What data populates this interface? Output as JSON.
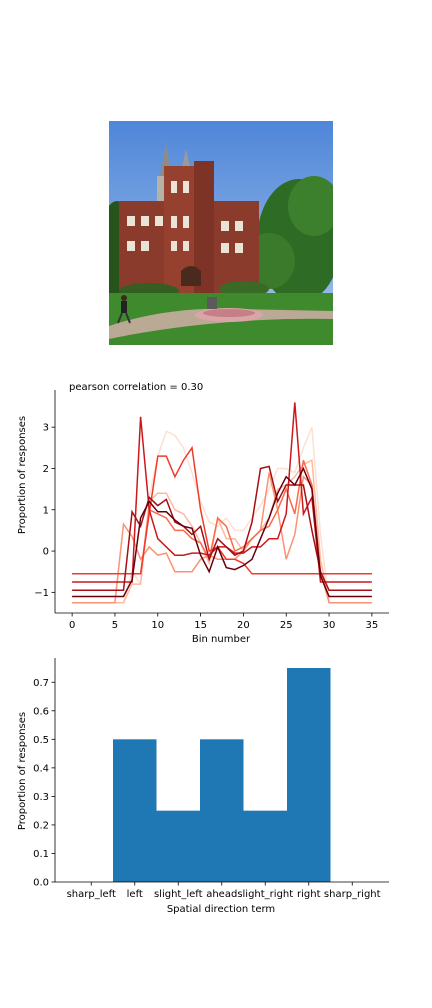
{
  "photo": {
    "alt": "campus-building-photo"
  },
  "colors": {
    "bar": "#1f77b4",
    "line_palette": [
      "#fee0d2",
      "#fcbba1",
      "#fc9272",
      "#fb6a4a",
      "#ef3b2c",
      "#cb181d",
      "#a50f15",
      "#67000d"
    ]
  },
  "chart_data": [
    {
      "type": "line",
      "title": "pearson correlation = 0.30",
      "xlabel": "Bin number",
      "ylabel": "Proportion of responses",
      "xlim": [
        -2,
        37
      ],
      "ylim": [
        -1.5,
        3.9
      ],
      "xticks": [
        0,
        5,
        10,
        15,
        20,
        25,
        30,
        35
      ],
      "yticks": [
        -1,
        0,
        1,
        2,
        3
      ],
      "grid": false,
      "legend": "none",
      "x": [
        0,
        1,
        2,
        3,
        4,
        5,
        6,
        7,
        8,
        9,
        10,
        11,
        12,
        13,
        14,
        15,
        16,
        17,
        18,
        19,
        20,
        21,
        22,
        23,
        24,
        25,
        26,
        27,
        28,
        29,
        30,
        31,
        32,
        33,
        34,
        35
      ],
      "series": [
        {
          "color": "#fee0d2",
          "values": [
            -1.25,
            -1.25,
            -1.25,
            -1.25,
            -1.25,
            -1.25,
            -1.25,
            -0.5,
            -0.8,
            1.3,
            2.3,
            2.9,
            2.8,
            2.5,
            1.9,
            1.2,
            0.7,
            0.6,
            0.8,
            0.5,
            0.5,
            0.8,
            1.1,
            1.5,
            2.0,
            2.0,
            1.9,
            2.5,
            3.0,
            0.4,
            -1.25,
            -1.25,
            -1.25,
            -1.25,
            -1.25,
            -1.25
          ]
        },
        {
          "color": "#fcbba1",
          "values": [
            -1.25,
            -1.25,
            -1.25,
            -1.25,
            -1.25,
            -1.25,
            -1.25,
            -0.8,
            -0.8,
            1.2,
            1.4,
            1.4,
            1.0,
            0.9,
            0.6,
            0.2,
            -0.3,
            0.8,
            0.3,
            0.3,
            0.0,
            0.3,
            0.5,
            0.8,
            1.5,
            1.6,
            1.8,
            2.1,
            2.2,
            -0.2,
            -1.25,
            -1.25,
            -1.25,
            -1.25,
            -1.25,
            -1.25
          ]
        },
        {
          "color": "#fc9272",
          "values": [
            -1.25,
            -1.25,
            -1.25,
            -1.25,
            -1.25,
            -1.25,
            0.65,
            0.35,
            -0.2,
            0.1,
            -0.1,
            -0.05,
            -0.5,
            -0.5,
            -0.5,
            -0.2,
            -0.1,
            -0.2,
            -0.2,
            -0.2,
            0.0,
            0.3,
            0.5,
            1.9,
            1.0,
            -0.2,
            0.4,
            1.8,
            1.6,
            -0.5,
            -1.25,
            -1.25,
            -1.25,
            -1.25,
            -1.25,
            -1.25
          ]
        },
        {
          "color": "#fb6a4a",
          "values": [
            -0.55,
            -0.55,
            -0.55,
            -0.55,
            -0.55,
            -0.55,
            -0.55,
            -0.55,
            -0.55,
            1.0,
            0.9,
            0.8,
            0.5,
            0.5,
            0.3,
            0.2,
            -0.2,
            0.8,
            0.6,
            0.0,
            0.1,
            0.3,
            0.5,
            0.6,
            1.0,
            1.5,
            0.9,
            2.2,
            1.6,
            -0.55,
            -0.55,
            -0.55,
            -0.55,
            -0.55,
            -0.55,
            -0.55
          ]
        },
        {
          "color": "#ef3b2c",
          "values": [
            -0.55,
            -0.55,
            -0.55,
            -0.55,
            -0.55,
            -0.55,
            -0.55,
            -0.55,
            -0.55,
            0.9,
            2.3,
            2.3,
            1.8,
            2.2,
            2.5,
            1.0,
            0.0,
            0.1,
            -0.2,
            -0.2,
            -0.3,
            -0.55,
            -0.55,
            -0.55,
            -0.55,
            -0.55,
            -0.55,
            -0.55,
            -0.55,
            -0.55,
            -0.55,
            -0.55,
            -0.55,
            -0.55,
            -0.55,
            -0.55
          ]
        },
        {
          "color": "#cb181d",
          "values": [
            -0.75,
            -0.75,
            -0.75,
            -0.75,
            -0.75,
            -0.75,
            -0.75,
            -0.75,
            3.25,
            1.0,
            0.3,
            0.1,
            -0.1,
            -0.1,
            -0.05,
            -0.05,
            -0.1,
            0.1,
            0.1,
            -0.05,
            -0.05,
            0.1,
            0.1,
            0.3,
            0.3,
            0.9,
            3.6,
            0.9,
            1.3,
            -0.75,
            -0.75,
            -0.75,
            -0.75,
            -0.75,
            -0.75,
            -0.75
          ]
        },
        {
          "color": "#a50f15",
          "values": [
            -0.95,
            -0.95,
            -0.95,
            -0.95,
            -0.95,
            -0.95,
            -0.95,
            0.95,
            0.6,
            1.3,
            1.1,
            1.25,
            0.7,
            0.6,
            0.4,
            0.6,
            -0.2,
            0.3,
            0.1,
            -0.1,
            0.0,
            0.7,
            2.0,
            2.05,
            1.2,
            1.6,
            1.6,
            1.6,
            0.5,
            -0.5,
            -0.95,
            -0.95,
            -0.95,
            -0.95,
            -0.95,
            -0.95
          ]
        },
        {
          "color": "#67000d",
          "values": [
            -1.1,
            -1.1,
            -1.1,
            -1.1,
            -1.1,
            -1.1,
            -1.1,
            -0.7,
            0.8,
            1.2,
            0.95,
            0.95,
            0.75,
            0.6,
            0.55,
            -0.1,
            -0.5,
            0.1,
            -0.4,
            -0.45,
            -0.35,
            -0.2,
            0.3,
            0.8,
            1.4,
            1.8,
            1.6,
            2.0,
            1.5,
            -0.6,
            -1.1,
            -1.1,
            -1.1,
            -1.1,
            -1.1,
            -1.1
          ]
        }
      ]
    },
    {
      "type": "bar",
      "xlabel": "Spatial direction term",
      "ylabel": "Proportion of responses",
      "categories": [
        "sharp_left",
        "left",
        "slight_left",
        "ahead",
        "slight_right",
        "right",
        "sharp_right"
      ],
      "values": [
        0,
        0.5,
        0.25,
        0.5,
        0.25,
        0.75,
        0
      ],
      "ylim": [
        0,
        0.785
      ],
      "yticks": [
        "0.0",
        "0.1",
        "0.2",
        "0.3",
        "0.4",
        "0.5",
        "0.6",
        "0.7"
      ],
      "grid": false,
      "legend": "none"
    }
  ]
}
